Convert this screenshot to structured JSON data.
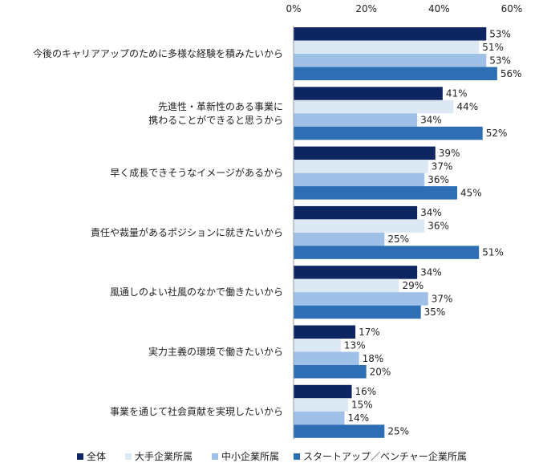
{
  "chart_data": {
    "type": "bar",
    "orientation": "horizontal",
    "xlim": [
      0,
      60
    ],
    "ticks": [
      "0%",
      "20%",
      "40%",
      "60%"
    ],
    "tick_values": [
      0,
      20,
      40,
      60
    ],
    "grid": false,
    "legend_position": "bottom",
    "categories": [
      [
        "今後のキャリアアップのために多様な経験を積みたいから"
      ],
      [
        "先進性・革新性のある事業に",
        "携わることができると思うから"
      ],
      [
        "早く成長できそうなイメージがあるから"
      ],
      [
        "責任や裁量があるポジションに就きたいから"
      ],
      [
        "風通しのよい社風のなかで働きたいから"
      ],
      [
        "実力主義の環境で働きたいから"
      ],
      [
        "事業を通じて社会貢献を実現したいから"
      ]
    ],
    "series": [
      {
        "name": "全体",
        "color": "#0d2560",
        "values": [
          53,
          41,
          39,
          34,
          34,
          17,
          16
        ]
      },
      {
        "name": "大手企業所属",
        "color": "#dde8f5",
        "values": [
          51,
          44,
          37,
          36,
          29,
          13,
          15
        ]
      },
      {
        "name": "中小企業所属",
        "color": "#9fc1e7",
        "values": [
          53,
          34,
          36,
          25,
          37,
          18,
          14
        ]
      },
      {
        "name": "スタートアップ／ベンチャー企業所属",
        "color": "#2e6eb5",
        "values": [
          56,
          52,
          45,
          51,
          35,
          20,
          25
        ]
      }
    ],
    "value_suffix": "%"
  }
}
